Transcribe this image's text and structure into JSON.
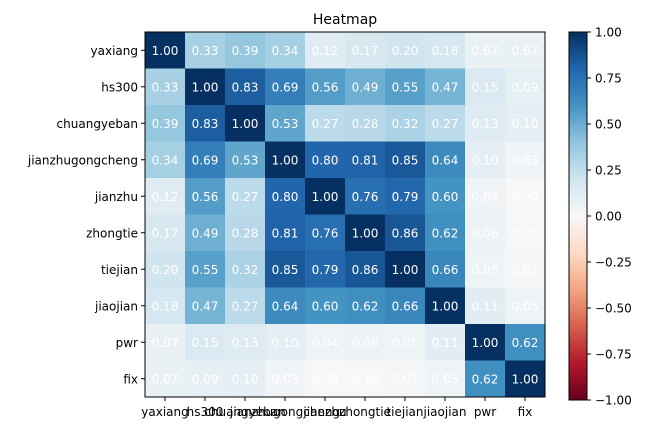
{
  "chart_data": {
    "type": "heatmap",
    "title": "Heatmap",
    "labels": [
      "yaxiang",
      "hs300",
      "chuangyeban",
      "jianzhugongcheng",
      "jianzhu",
      "zhongtie",
      "tiejian",
      "jiaojian",
      "pwr",
      "fix"
    ],
    "values": [
      [
        1.0,
        0.33,
        0.39,
        0.34,
        0.12,
        0.17,
        0.2,
        0.18,
        0.07,
        0.07
      ],
      [
        0.33,
        1.0,
        0.83,
        0.69,
        0.56,
        0.49,
        0.55,
        0.47,
        0.15,
        0.09
      ],
      [
        0.39,
        0.83,
        1.0,
        0.53,
        0.27,
        0.28,
        0.32,
        0.27,
        0.13,
        0.1
      ],
      [
        0.34,
        0.69,
        0.53,
        1.0,
        0.8,
        0.81,
        0.85,
        0.64,
        0.1,
        0.03
      ],
      [
        0.12,
        0.56,
        0.27,
        0.8,
        1.0,
        0.76,
        0.79,
        0.6,
        0.04,
        0.0
      ],
      [
        0.17,
        0.49,
        0.28,
        0.81,
        0.76,
        1.0,
        0.86,
        0.62,
        0.06,
        -0.0
      ],
      [
        0.2,
        0.55,
        0.32,
        0.85,
        0.79,
        0.86,
        1.0,
        0.66,
        0.05,
        0.01
      ],
      [
        0.18,
        0.47,
        0.27,
        0.64,
        0.6,
        0.62,
        0.66,
        1.0,
        0.11,
        0.05
      ],
      [
        0.07,
        0.15,
        0.13,
        0.1,
        0.04,
        0.06,
        0.05,
        0.11,
        1.0,
        0.62
      ],
      [
        0.07,
        0.09,
        0.1,
        0.03,
        0.0,
        -0.0,
        0.01,
        0.05,
        0.62,
        1.0
      ]
    ],
    "colormap": "RdBu",
    "vmin": -1.0,
    "vmax": 1.0,
    "colorbar_ticks": [
      "1.00",
      "0.75",
      "0.50",
      "0.25",
      "0.00",
      "−0.25",
      "−0.50",
      "−0.75",
      "−1.00"
    ],
    "annotation_color": "#ffffff"
  }
}
